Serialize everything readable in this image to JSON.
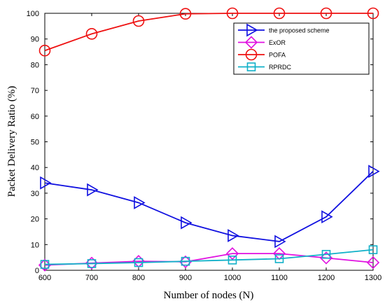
{
  "chart_data": {
    "type": "line",
    "xlabel": "Number of nodes (N)",
    "ylabel": "Packet Delivery Ratio (%)",
    "xlim": [
      600,
      1300
    ],
    "ylim": [
      0,
      100
    ],
    "xticks": [
      "600",
      "700",
      "800",
      "900",
      "1000",
      "1100",
      "1200",
      "1300"
    ],
    "yticks": [
      "0",
      "10",
      "20",
      "30",
      "40",
      "50",
      "60",
      "70",
      "80",
      "90",
      "100"
    ],
    "grid": false,
    "legend_position": "top-right",
    "x": [
      600,
      700,
      800,
      900,
      1000,
      1100,
      1200,
      1300
    ],
    "series": [
      {
        "name": "the proposed scheme",
        "marker": "triangle-right",
        "color": "#1010e0",
        "values": [
          34,
          31.3,
          26.3,
          18.5,
          13.5,
          11.2,
          20.8,
          38.5
        ]
      },
      {
        "name": "ExOR",
        "marker": "diamond",
        "color": "#e010e0",
        "values": [
          2,
          2.8,
          3.5,
          3.3,
          6.5,
          6.5,
          4.8,
          3
        ]
      },
      {
        "name": "POFA",
        "marker": "circle",
        "color": "#ee1010",
        "values": [
          85.5,
          92,
          97,
          99.8,
          100,
          100,
          100,
          100
        ]
      },
      {
        "name": "RPRDC",
        "marker": "square",
        "color": "#10b0c8",
        "values": [
          2.3,
          2.6,
          3,
          3.5,
          4,
          4.5,
          6.2,
          8
        ]
      }
    ]
  }
}
